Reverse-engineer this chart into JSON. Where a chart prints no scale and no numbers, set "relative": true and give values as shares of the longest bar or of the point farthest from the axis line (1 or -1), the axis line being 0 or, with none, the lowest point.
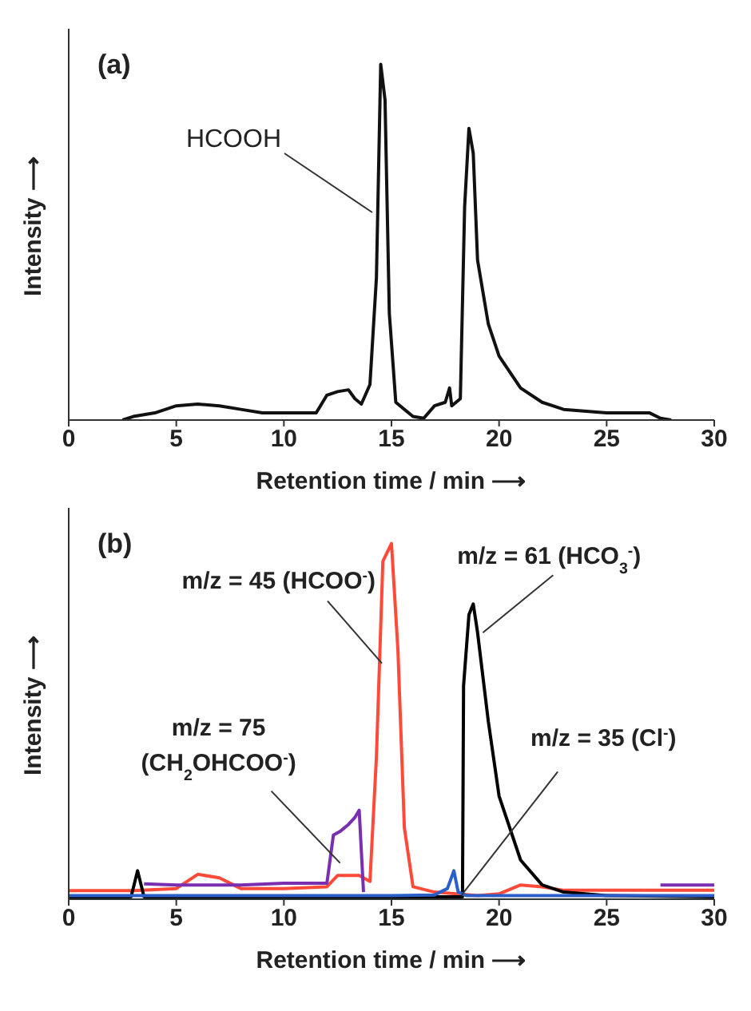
{
  "chart_data": [
    {
      "type": "line",
      "title": "(a)",
      "xlabel": "Retention time / min ⟶",
      "ylabel": "Intensity ⟶",
      "relative": true,
      "xlim": [
        0,
        30
      ],
      "xticks": [
        0,
        5,
        10,
        15,
        20,
        25,
        30
      ],
      "annotations": [
        "HCOOH"
      ],
      "series": [
        {
          "color": "#111111",
          "x": [
            2.5,
            3,
            4,
            5,
            6,
            7,
            8,
            9,
            10,
            11.5,
            12,
            12.5,
            13,
            13.3,
            13.6,
            14,
            14.3,
            14.5,
            14.7,
            14.9,
            15.2,
            16,
            16.5,
            17,
            17.5,
            17.7,
            17.8,
            18.2,
            18.4,
            18.6,
            18.8,
            19,
            19.5,
            20,
            21,
            22,
            23,
            25,
            27,
            27.5,
            28
          ],
          "values": [
            0,
            0.01,
            0.02,
            0.04,
            0.045,
            0.04,
            0.03,
            0.02,
            0.02,
            0.02,
            0.07,
            0.08,
            0.085,
            0.06,
            0.045,
            0.1,
            0.4,
            1,
            0.9,
            0.3,
            0.05,
            0.01,
            0.005,
            0.04,
            0.05,
            0.09,
            0.04,
            0.06,
            0.6,
            0.82,
            0.75,
            0.45,
            0.27,
            0.18,
            0.09,
            0.05,
            0.03,
            0.02,
            0.02,
            0.005,
            0
          ]
        }
      ]
    },
    {
      "type": "line",
      "title": "(b)",
      "xlabel": "Retention time / min ⟶",
      "ylabel": "Intensity ⟶",
      "relative": true,
      "xlim": [
        0,
        30
      ],
      "xticks": [
        0,
        5,
        10,
        15,
        20,
        25,
        30
      ],
      "series": [
        {
          "name": "m/z = 45 (HCOO$^{-}$)",
          "color": "#ff4a3a",
          "x": [
            0,
            3,
            5,
            6,
            7,
            8,
            9,
            10,
            12,
            12.5,
            13.5,
            14,
            14.3,
            14.6,
            15,
            15.3,
            15.6,
            16,
            17,
            18,
            19,
            20,
            21,
            22,
            23,
            25,
            28,
            30
          ],
          "values": [
            0.024,
            0.024,
            0.03,
            0.07,
            0.06,
            0.03,
            0.03,
            0.03,
            0.035,
            0.067,
            0.067,
            0.05,
            0.4,
            0.95,
            1,
            0.7,
            0.2,
            0.035,
            0.02,
            0.015,
            0.01,
            0.015,
            0.04,
            0.035,
            0.025,
            0.025,
            0.025,
            0.025
          ]
        },
        {
          "name": "m/z = 61 (HCO$_{3}$$^{-}$)",
          "color": "#000000",
          "x": [
            0,
            2.9,
            3.2,
            3.5,
            4,
            10,
            15,
            18,
            18.3,
            18.35,
            18.6,
            18.8,
            19,
            19.5,
            20,
            21,
            22,
            23,
            25,
            30
          ],
          "values": [
            0.007,
            0.007,
            0.08,
            0.007,
            0.007,
            0.007,
            0.007,
            0.007,
            0.007,
            0.6,
            0.8,
            0.83,
            0.75,
            0.5,
            0.29,
            0.11,
            0.04,
            0.02,
            0.01,
            0.007
          ]
        },
        {
          "name": "m/z = 75 (CH$_{2}$OHCOO$^{-}$)",
          "color": "#7a2fb0",
          "x": [
            3.5,
            5,
            8,
            10,
            12,
            12.3,
            12.6,
            13,
            13.3,
            13.5,
            13.7,
            13.8,
            20,
            27.5,
            28,
            30
          ],
          "values": [
            0.043,
            0.04,
            0.04,
            0.045,
            0.045,
            0.18,
            0.19,
            0.21,
            0.23,
            0.25,
            0.02,
            null,
            null,
            0.04,
            0.04,
            0.04
          ]
        },
        {
          "name": "m/z = 35 (Cl$^{-}$)",
          "color": "#2b5fc8",
          "x": [
            0,
            5,
            10,
            15,
            17,
            17.6,
            17.9,
            18.1,
            18.5,
            20,
            22,
            25,
            30
          ],
          "values": [
            0.01,
            0.01,
            0.01,
            0.01,
            0.012,
            0.03,
            0.08,
            0.02,
            0.01,
            0.01,
            0.01,
            0.01,
            0.01
          ]
        }
      ]
    }
  ]
}
